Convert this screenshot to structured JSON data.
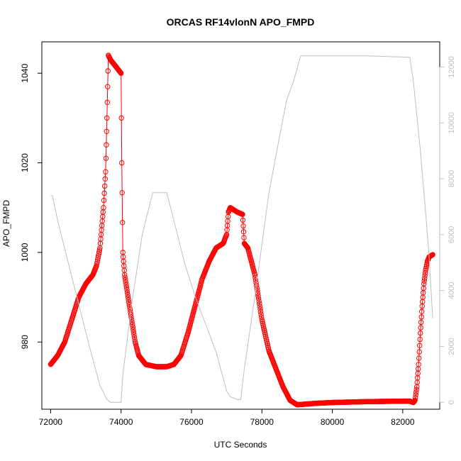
{
  "chart_data": {
    "type": "line",
    "title": "ORCAS RF14vlonN APO_FMPD",
    "xlabel": "UTC Seconds",
    "ylabel": "APO_FMPD",
    "xlim": [
      71750,
      83050
    ],
    "ylim": [
      965,
      1047
    ],
    "y2lim": [
      -250,
      12900
    ],
    "x_ticks": [
      72000,
      74000,
      76000,
      78000,
      80000,
      82000
    ],
    "y_ticks": [
      980,
      1000,
      1020,
      1040
    ],
    "y2_ticks": [
      0,
      2000,
      4000,
      6000,
      8000,
      10000,
      12000
    ],
    "grid": false,
    "legend": "none",
    "series": [
      {
        "color": "#ff0000",
        "style": "line+open-circles",
        "points": [
          [
            72000,
            975
          ],
          [
            72200,
            977
          ],
          [
            72400,
            980
          ],
          [
            72600,
            985
          ],
          [
            72800,
            990
          ],
          [
            73000,
            993
          ],
          [
            73200,
            995
          ],
          [
            73300,
            997
          ],
          [
            73400,
            1001
          ],
          [
            73500,
            1010
          ],
          [
            73560,
            1018
          ],
          [
            73600,
            1030
          ],
          [
            73640,
            1044
          ],
          [
            73700,
            1043
          ],
          [
            73800,
            1042
          ],
          [
            73900,
            1041
          ],
          [
            74000,
            1040
          ],
          [
            74020,
            1020
          ],
          [
            74050,
            1000
          ],
          [
            74100,
            995
          ],
          [
            74200,
            990
          ],
          [
            74300,
            985
          ],
          [
            74400,
            980
          ],
          [
            74500,
            977
          ],
          [
            74700,
            975
          ],
          [
            75000,
            974.5
          ],
          [
            75300,
            974.5
          ],
          [
            75500,
            975
          ],
          [
            75700,
            977
          ],
          [
            75900,
            982
          ],
          [
            76100,
            988
          ],
          [
            76300,
            994
          ],
          [
            76500,
            998
          ],
          [
            76700,
            1001
          ],
          [
            76900,
            1002
          ],
          [
            77000,
            1004
          ],
          [
            77050,
            1009
          ],
          [
            77100,
            1010
          ],
          [
            77300,
            1009
          ],
          [
            77450,
            1008.5
          ],
          [
            77500,
            1002
          ],
          [
            77600,
            1001
          ],
          [
            77800,
            995
          ],
          [
            78000,
            985
          ],
          [
            78200,
            978
          ],
          [
            78400,
            974
          ],
          [
            78600,
            970
          ],
          [
            78800,
            967
          ],
          [
            79000,
            966
          ],
          [
            79500,
            966.3
          ],
          [
            80000,
            966.5
          ],
          [
            81000,
            966.7
          ],
          [
            82000,
            966.8
          ],
          [
            82200,
            966.8
          ],
          [
            82300,
            966.5
          ],
          [
            82350,
            967
          ],
          [
            82400,
            970
          ],
          [
            82450,
            975
          ],
          [
            82500,
            982
          ],
          [
            82550,
            988
          ],
          [
            82600,
            993
          ],
          [
            82650,
            996
          ],
          [
            82700,
            998
          ],
          [
            82750,
            999
          ],
          [
            82850,
            999.5
          ]
        ]
      },
      {
        "color": "#bebebe",
        "axis": "right",
        "style": "line",
        "points": [
          [
            72000,
            7400
          ],
          [
            72050,
            7400
          ],
          [
            72200,
            6500
          ],
          [
            72500,
            5000
          ],
          [
            72800,
            3500
          ],
          [
            73100,
            2000
          ],
          [
            73400,
            600
          ],
          [
            73600,
            100
          ],
          [
            73700,
            0
          ],
          [
            74000,
            0
          ],
          [
            74050,
            1000
          ],
          [
            74300,
            3500
          ],
          [
            74600,
            6000
          ],
          [
            74900,
            7500
          ],
          [
            75300,
            7500
          ],
          [
            75500,
            6500
          ],
          [
            75800,
            5000
          ],
          [
            76100,
            3800
          ],
          [
            76400,
            2800
          ],
          [
            76700,
            1800
          ],
          [
            77000,
            400
          ],
          [
            77100,
            200
          ],
          [
            77300,
            100
          ],
          [
            77400,
            100
          ],
          [
            77500,
            1200
          ],
          [
            77800,
            3800
          ],
          [
            78200,
            7500
          ],
          [
            78500,
            9500
          ],
          [
            78700,
            10800
          ],
          [
            78900,
            11500
          ],
          [
            79100,
            12400
          ],
          [
            80000,
            12400
          ],
          [
            81000,
            12400
          ],
          [
            82200,
            12350
          ],
          [
            82300,
            11500
          ],
          [
            82500,
            9000
          ],
          [
            82650,
            6800
          ],
          [
            82750,
            5200
          ],
          [
            82850,
            3000
          ]
        ]
      }
    ]
  }
}
